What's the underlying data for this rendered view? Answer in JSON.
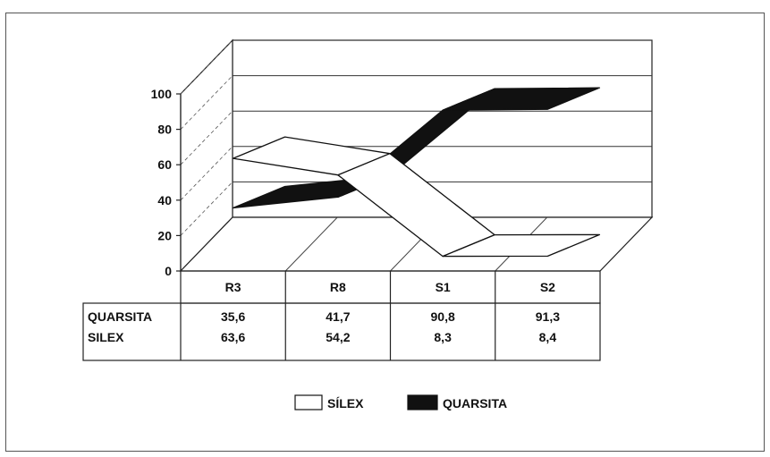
{
  "chart_data": {
    "type": "line",
    "style": "3d-ribbon",
    "categories": [
      "R3",
      "R8",
      "S1",
      "S2"
    ],
    "series": [
      {
        "name": "SILEX",
        "values": [
          63.6,
          54.2,
          8.3,
          8.4
        ],
        "color": "#ffffff",
        "stroke": "#111111"
      },
      {
        "name": "QUARSITA",
        "values": [
          35.6,
          41.7,
          90.8,
          91.3
        ],
        "color": "#111111",
        "stroke": "#111111"
      }
    ],
    "table": {
      "rows": [
        {
          "label": "QUARSITA",
          "values": [
            "35,6",
            "41,7",
            "90,8",
            "91,3"
          ]
        },
        {
          "label": "SILEX",
          "values": [
            "63,6",
            "54,2",
            "8,3",
            "8,4"
          ]
        }
      ]
    },
    "yticks": [
      "0",
      "20",
      "40",
      "60",
      "80",
      "100"
    ],
    "ylim": [
      0,
      100
    ],
    "grid": true,
    "legend": {
      "position": "bottom-center",
      "entries": [
        {
          "label": "SÍLEX",
          "swatch": "#ffffff"
        },
        {
          "label": "QUARSITA",
          "swatch": "#111111"
        }
      ]
    }
  }
}
